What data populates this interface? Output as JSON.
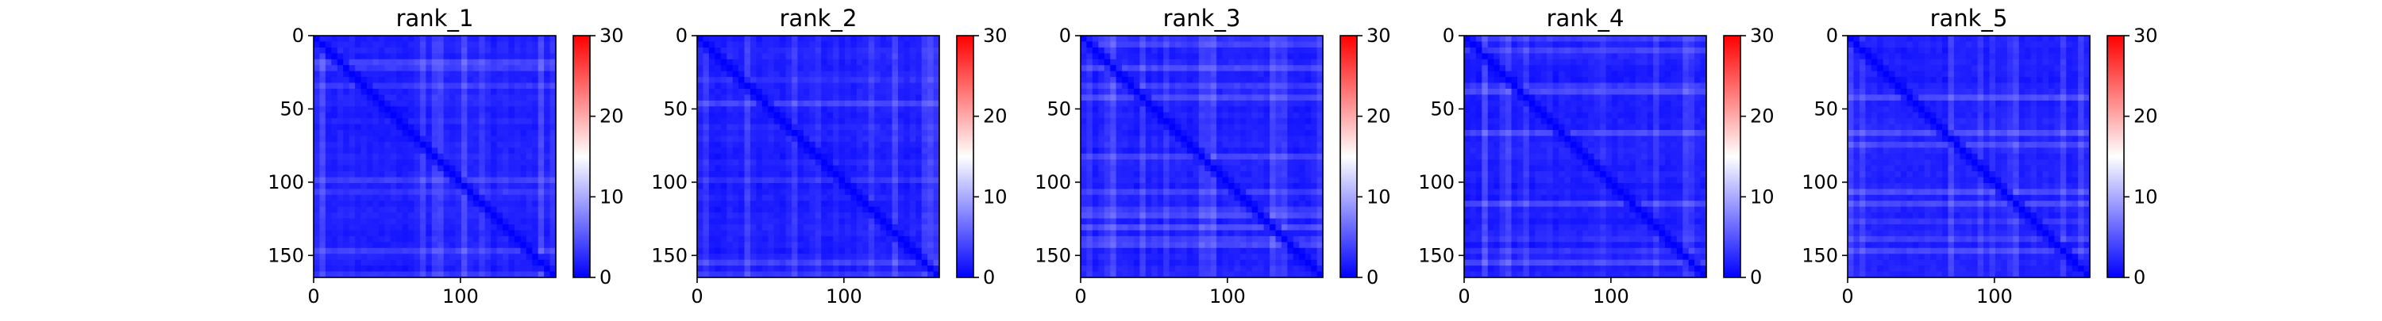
{
  "chart_data": [
    {
      "type": "heatmap",
      "title": "rank_1",
      "xlim": [
        0,
        165
      ],
      "ylim": [
        165,
        0
      ],
      "x_ticks": [
        {
          "value": 0,
          "label": "0"
        },
        {
          "value": 100,
          "label": "100"
        }
      ],
      "y_ticks": [
        {
          "value": 0,
          "label": "0"
        },
        {
          "value": 50,
          "label": "50"
        },
        {
          "value": 100,
          "label": "100"
        },
        {
          "value": 150,
          "label": "150"
        }
      ],
      "colorbar": {
        "min": 0,
        "max": 30,
        "ticks": [
          {
            "value": 0,
            "label": "0"
          },
          {
            "value": 10,
            "label": "10"
          },
          {
            "value": 20,
            "label": "20"
          },
          {
            "value": 30,
            "label": "30"
          }
        ]
      },
      "colormap": [
        "#0000ff",
        "#ffffff",
        "#ff0000"
      ]
    },
    {
      "type": "heatmap",
      "title": "rank_2",
      "xlim": [
        0,
        165
      ],
      "ylim": [
        165,
        0
      ],
      "x_ticks": [
        {
          "value": 0,
          "label": "0"
        },
        {
          "value": 100,
          "label": "100"
        }
      ],
      "y_ticks": [
        {
          "value": 0,
          "label": "0"
        },
        {
          "value": 50,
          "label": "50"
        },
        {
          "value": 100,
          "label": "100"
        },
        {
          "value": 150,
          "label": "150"
        }
      ],
      "colorbar": {
        "min": 0,
        "max": 30,
        "ticks": [
          {
            "value": 0,
            "label": "0"
          },
          {
            "value": 10,
            "label": "10"
          },
          {
            "value": 20,
            "label": "20"
          },
          {
            "value": 30,
            "label": "30"
          }
        ]
      },
      "colormap": [
        "#0000ff",
        "#ffffff",
        "#ff0000"
      ]
    },
    {
      "type": "heatmap",
      "title": "rank_3",
      "xlim": [
        0,
        165
      ],
      "ylim": [
        165,
        0
      ],
      "x_ticks": [
        {
          "value": 0,
          "label": "0"
        },
        {
          "value": 100,
          "label": "100"
        }
      ],
      "y_ticks": [
        {
          "value": 0,
          "label": "0"
        },
        {
          "value": 50,
          "label": "50"
        },
        {
          "value": 100,
          "label": "100"
        },
        {
          "value": 150,
          "label": "150"
        }
      ],
      "colorbar": {
        "min": 0,
        "max": 30,
        "ticks": [
          {
            "value": 0,
            "label": "0"
          },
          {
            "value": 10,
            "label": "10"
          },
          {
            "value": 20,
            "label": "20"
          },
          {
            "value": 30,
            "label": "30"
          }
        ]
      },
      "colormap": [
        "#0000ff",
        "#ffffff",
        "#ff0000"
      ]
    },
    {
      "type": "heatmap",
      "title": "rank_4",
      "xlim": [
        0,
        165
      ],
      "ylim": [
        165,
        0
      ],
      "x_ticks": [
        {
          "value": 0,
          "label": "0"
        },
        {
          "value": 100,
          "label": "100"
        }
      ],
      "y_ticks": [
        {
          "value": 0,
          "label": "0"
        },
        {
          "value": 50,
          "label": "50"
        },
        {
          "value": 100,
          "label": "100"
        },
        {
          "value": 150,
          "label": "150"
        }
      ],
      "colorbar": {
        "min": 0,
        "max": 30,
        "ticks": [
          {
            "value": 0,
            "label": "0"
          },
          {
            "value": 10,
            "label": "10"
          },
          {
            "value": 20,
            "label": "20"
          },
          {
            "value": 30,
            "label": "30"
          }
        ]
      },
      "colormap": [
        "#0000ff",
        "#ffffff",
        "#ff0000"
      ]
    },
    {
      "type": "heatmap",
      "title": "rank_5",
      "xlim": [
        0,
        165
      ],
      "ylim": [
        165,
        0
      ],
      "x_ticks": [
        {
          "value": 0,
          "label": "0"
        },
        {
          "value": 100,
          "label": "100"
        }
      ],
      "y_ticks": [
        {
          "value": 0,
          "label": "0"
        },
        {
          "value": 50,
          "label": "50"
        },
        {
          "value": 100,
          "label": "100"
        },
        {
          "value": 150,
          "label": "150"
        }
      ],
      "colorbar": {
        "min": 0,
        "max": 30,
        "ticks": [
          {
            "value": 0,
            "label": "0"
          },
          {
            "value": 10,
            "label": "10"
          },
          {
            "value": 20,
            "label": "20"
          },
          {
            "value": 30,
            "label": "30"
          }
        ]
      },
      "colormap": [
        "#0000ff",
        "#ffffff",
        "#ff0000"
      ]
    }
  ]
}
